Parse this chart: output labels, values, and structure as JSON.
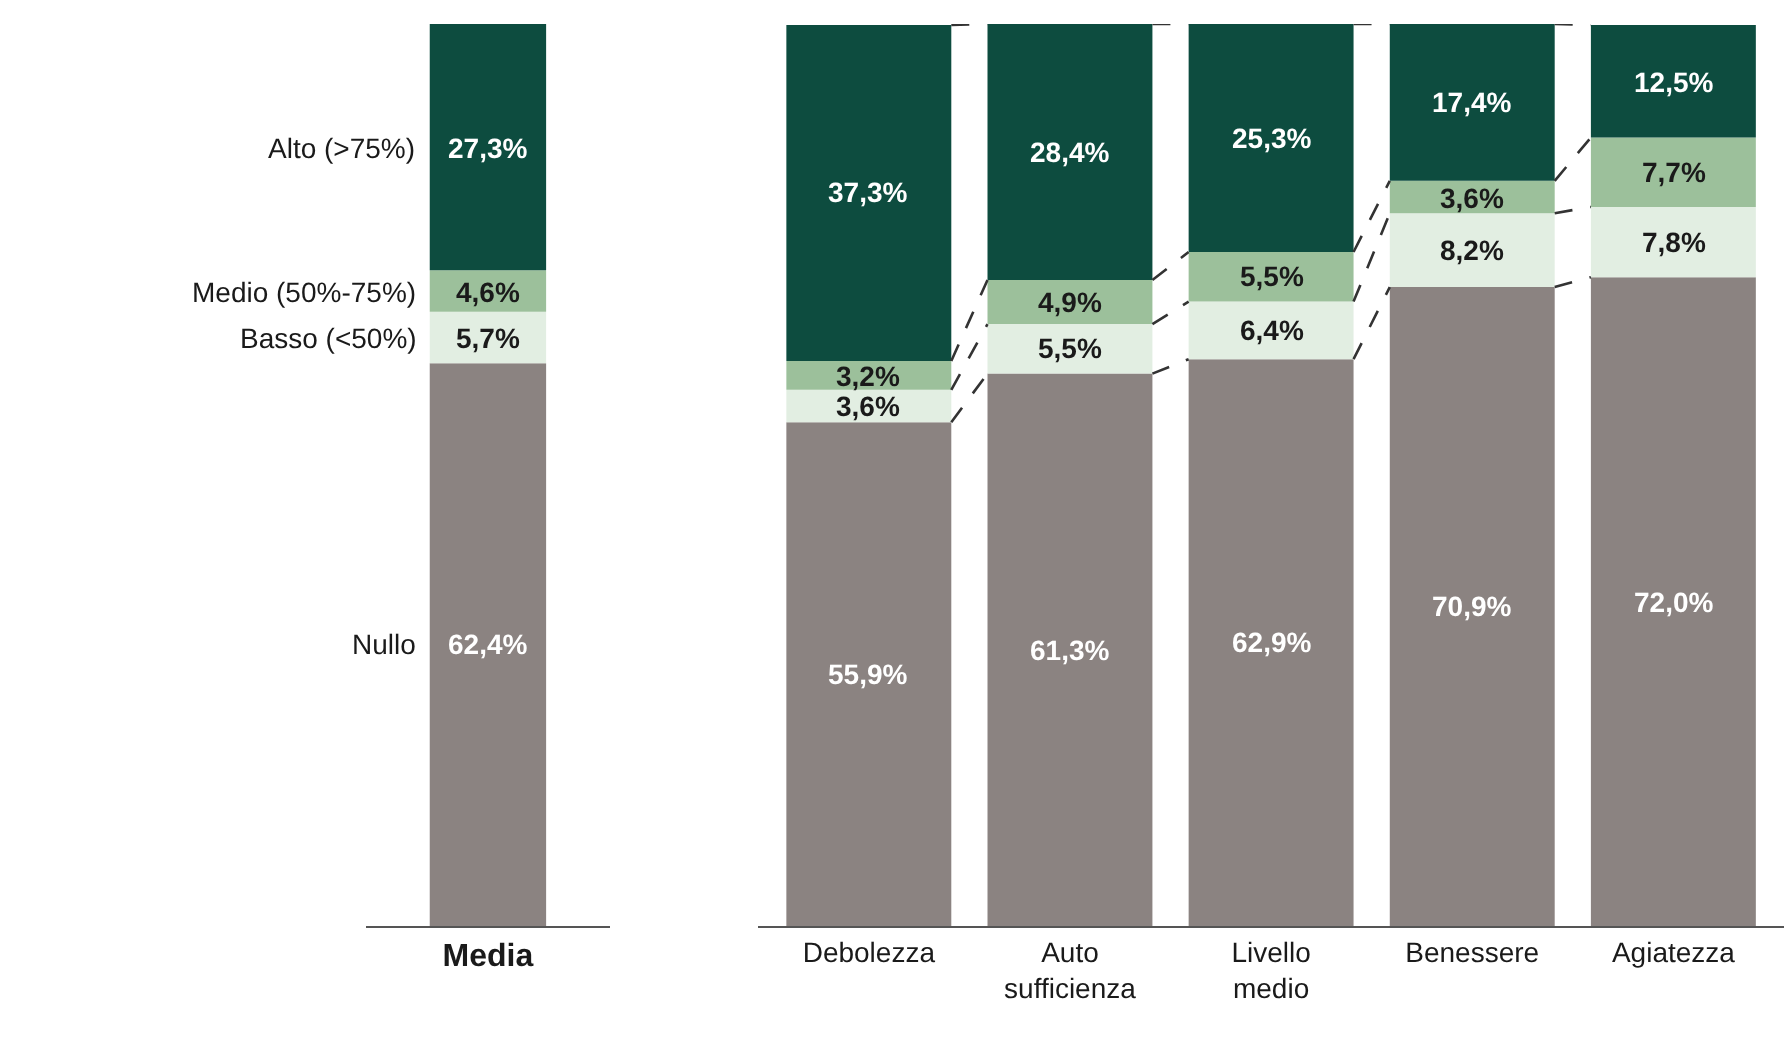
{
  "chart_data": [
    {
      "type": "bar",
      "stacked": true,
      "categories": [
        "Media"
      ],
      "legend": false,
      "tick_labels": "x",
      "series": [
        {
          "name": "Nullo",
          "color": "#8b8381",
          "values": [
            62.4
          ],
          "value_labels": [
            "62,4%"
          ]
        },
        {
          "name": "Basso (<50%)",
          "color": "#e2eee2",
          "values": [
            5.7
          ],
          "value_labels": [
            "5,7%"
          ]
        },
        {
          "name": "Medio (50%-75%)",
          "color": "#9cc09b",
          "values": [
            4.6
          ],
          "value_labels": [
            "4,6%"
          ]
        },
        {
          "name": "Alto (>75%)",
          "color": "#0d4c3f",
          "values": [
            27.3
          ],
          "value_labels": [
            "27,3%"
          ]
        }
      ]
    },
    {
      "type": "bar",
      "stacked": true,
      "categories": [
        "Debolezza",
        "Auto sufficienza",
        "Livello medio",
        "Benessere",
        "Agiatezza"
      ],
      "legend": false,
      "tick_labels": "x",
      "series": [
        {
          "color": "#8b8381",
          "values": [
            55.9,
            61.3,
            62.9,
            70.9,
            72.0
          ],
          "value_labels": [
            "55,9%",
            "61,3%",
            "62,9%",
            "70,9%",
            "72,0%"
          ]
        },
        {
          "color": "#e2eee2",
          "values": [
            3.6,
            5.5,
            6.4,
            8.2,
            7.8
          ],
          "value_labels": [
            "3,6%",
            "5,5%",
            "6,4%",
            "8,2%",
            "7,8%"
          ]
        },
        {
          "color": "#9cc09b",
          "values": [
            3.2,
            4.9,
            5.5,
            3.6,
            7.7
          ],
          "value_labels": [
            "3,2%",
            "4,9%",
            "5,5%",
            "3,6%",
            "7,7%"
          ]
        },
        {
          "color": "#0d4c3f",
          "values": [
            37.3,
            28.4,
            25.3,
            17.4,
            12.5
          ],
          "value_labels": [
            "37,3%",
            "28,4%",
            "25,3%",
            "17,4%",
            "12,5%"
          ]
        }
      ]
    }
  ]
}
